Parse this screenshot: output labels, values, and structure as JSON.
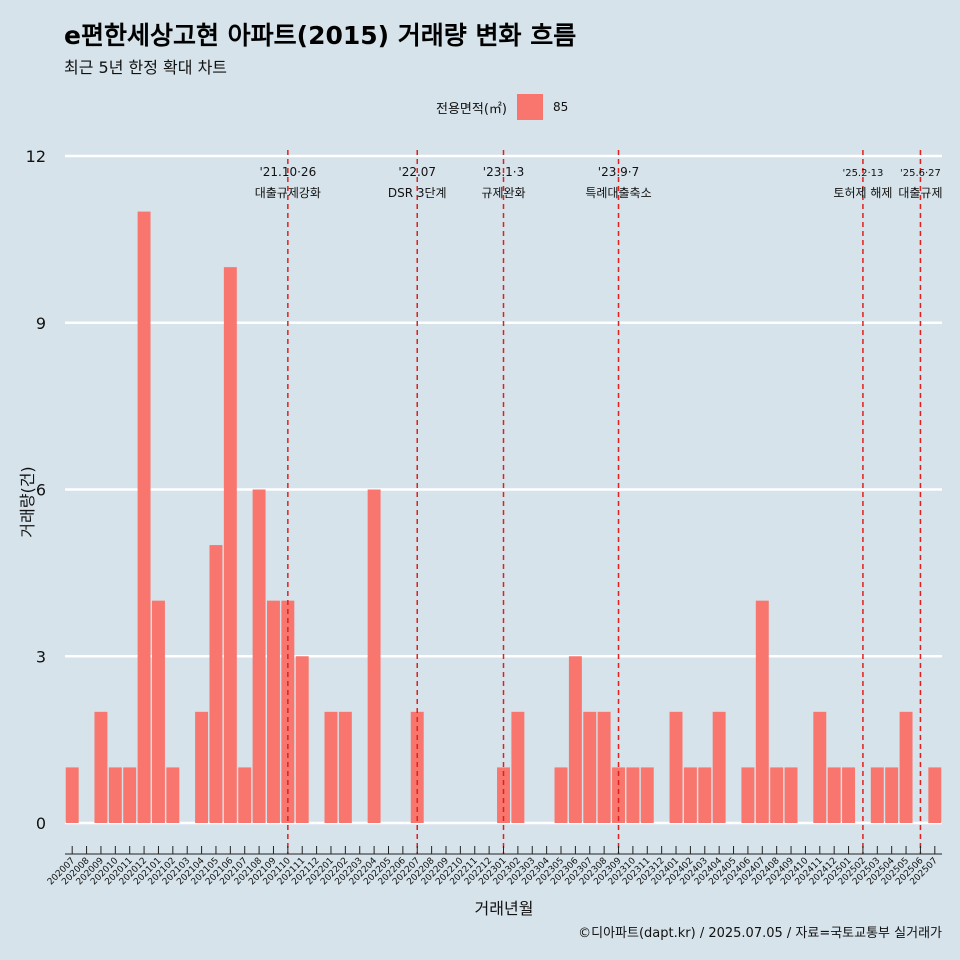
{
  "title": "e편한세상고현 아파트(2015) 거래량 변화 흐름",
  "subtitle": "최근 5년 한정 확대 차트",
  "legend": {
    "title": "전용면적(㎡)",
    "item": "85"
  },
  "caption": "©디아파트(dapt.kr) / 2025.07.05 / 자료=국토교통부 실거래가",
  "colors": {
    "bar": "#f8766d",
    "background": "#d6e3ea",
    "grid": "#ffffff",
    "vline": "#e0201c"
  },
  "chart_data": {
    "type": "bar",
    "xlabel": "거래년월",
    "ylabel": "거래량(건)",
    "ylim": [
      0,
      12
    ],
    "yticks": [
      0,
      3,
      6,
      9,
      12
    ],
    "grid": "horizontal",
    "legend_position": "top",
    "categories": [
      "202007",
      "202008",
      "202009",
      "202010",
      "202011",
      "202012",
      "202101",
      "202102",
      "202103",
      "202104",
      "202105",
      "202106",
      "202107",
      "202108",
      "202109",
      "202110",
      "202111",
      "202112",
      "202201",
      "202202",
      "202203",
      "202204",
      "202205",
      "202206",
      "202207",
      "202208",
      "202209",
      "202210",
      "202211",
      "202212",
      "202301",
      "202302",
      "202303",
      "202304",
      "202305",
      "202306",
      "202307",
      "202308",
      "202309",
      "202310",
      "202311",
      "202312",
      "202401",
      "202402",
      "202403",
      "202404",
      "202405",
      "202406",
      "202407",
      "202408",
      "202409",
      "202410",
      "202411",
      "202412",
      "202501",
      "202502",
      "202503",
      "202504",
      "202505",
      "202506",
      "202507"
    ],
    "series": [
      {
        "name": "85",
        "values": [
          1,
          0,
          2,
          1,
          1,
          11,
          4,
          1,
          0,
          2,
          5,
          10,
          1,
          6,
          4,
          4,
          3,
          0,
          2,
          2,
          0,
          6,
          0,
          0,
          2,
          0,
          0,
          0,
          0,
          0,
          1,
          2,
          0,
          0,
          1,
          3,
          2,
          2,
          1,
          1,
          1,
          0,
          2,
          1,
          1,
          2,
          0,
          1,
          4,
          1,
          1,
          0,
          2,
          1,
          1,
          0,
          1,
          1,
          2,
          0,
          1
        ]
      }
    ],
    "annotations": [
      {
        "category": "202110",
        "date": "'21.10·26",
        "label": "대출규제강화"
      },
      {
        "category": "202207",
        "date": "'22.07",
        "label": "DSR 3단계"
      },
      {
        "category": "202301",
        "date": "'23.1·3",
        "label": "규제완화"
      },
      {
        "category": "202309",
        "date": "'23.9·7",
        "label": "특례대출축소"
      },
      {
        "category": "202502",
        "date": "'25.2·13",
        "label": "토허제 해제"
      },
      {
        "category": "202506",
        "date": "'25.6·27",
        "label": "대출규제"
      }
    ]
  }
}
